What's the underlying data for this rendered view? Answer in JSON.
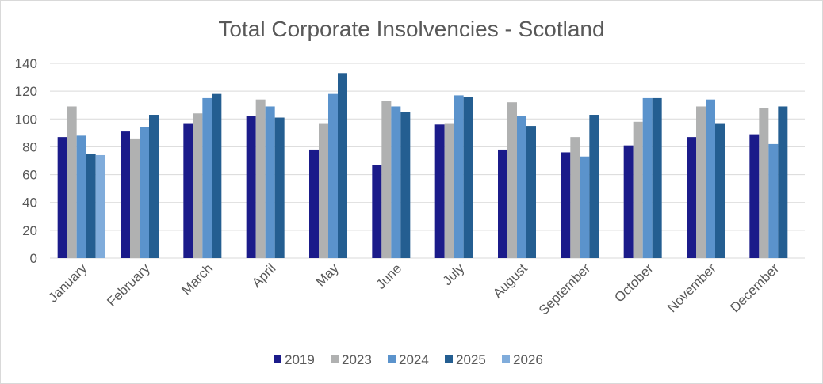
{
  "chart_data": {
    "type": "bar",
    "title": "Total Corporate Insolvencies - Scotland",
    "xlabel": "",
    "ylabel": "",
    "ylim": [
      0,
      140
    ],
    "yticks": [
      0,
      20,
      40,
      60,
      80,
      100,
      120,
      140
    ],
    "grid": true,
    "legend_position": "bottom",
    "categories": [
      "January",
      "February",
      "March",
      "April",
      "May",
      "June",
      "July",
      "August",
      "September",
      "October",
      "November",
      "December"
    ],
    "series": [
      {
        "name": "2019",
        "color": "#1b1b8a",
        "values": [
          87,
          91,
          97,
          102,
          78,
          67,
          96,
          78,
          76,
          81,
          87,
          89
        ]
      },
      {
        "name": "2023",
        "color": "#b0b1b1",
        "values": [
          109,
          86,
          104,
          114,
          97,
          113,
          97,
          112,
          87,
          98,
          109,
          108
        ]
      },
      {
        "name": "2024",
        "color": "#5b93cc",
        "values": [
          88,
          94,
          115,
          109,
          118,
          109,
          117,
          102,
          73,
          115,
          114,
          82
        ]
      },
      {
        "name": "2025",
        "color": "#245e91",
        "values": [
          75,
          103,
          118,
          101,
          133,
          105,
          116,
          95,
          103,
          115,
          97,
          109
        ]
      },
      {
        "name": "2026",
        "color": "#80acdb",
        "values": [
          74,
          null,
          null,
          null,
          null,
          null,
          null,
          null,
          null,
          null,
          null,
          null
        ]
      }
    ]
  }
}
